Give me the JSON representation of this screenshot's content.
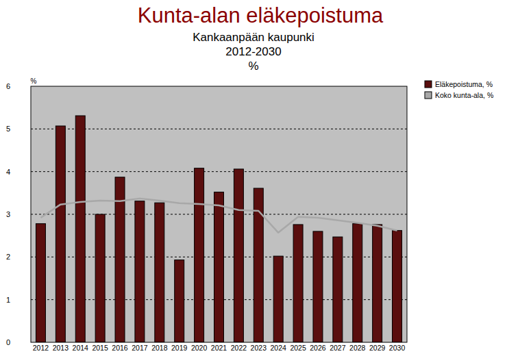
{
  "chart_data": {
    "type": "bar",
    "title": "Kunta-alan eläkepoistuma",
    "subtitle": [
      "Kankaanpään kaupunki",
      "2012-2030",
      "%"
    ],
    "y_label": "%",
    "categories": [
      "2012",
      "2013",
      "2014",
      "2015",
      "2016",
      "2017",
      "2018",
      "2019",
      "2020",
      "2021",
      "2022",
      "2023",
      "2024",
      "2025",
      "2026",
      "2027",
      "2028",
      "2029",
      "2030"
    ],
    "series": [
      {
        "name": "Eläkepoistuma, %",
        "type": "bar",
        "color": "#5a0e0e",
        "values": [
          2.78,
          5.07,
          5.31,
          3.0,
          3.87,
          3.31,
          3.27,
          1.93,
          4.08,
          3.52,
          4.06,
          3.61,
          2.02,
          2.76,
          2.6,
          2.47,
          2.78,
          2.76,
          2.62
        ]
      },
      {
        "name": "Koko kunta-ala, %",
        "type": "line",
        "color": "#a8a8a8",
        "values": [
          2.92,
          3.23,
          3.29,
          3.32,
          3.31,
          3.37,
          3.32,
          3.26,
          3.24,
          3.21,
          3.1,
          3.08,
          2.57,
          2.94,
          2.92,
          2.86,
          2.8,
          2.73,
          2.62
        ]
      }
    ],
    "ylim": [
      0,
      6
    ],
    "yticks": [
      0,
      1,
      2,
      3,
      4,
      5,
      6
    ],
    "grid": true,
    "legend": "right"
  }
}
